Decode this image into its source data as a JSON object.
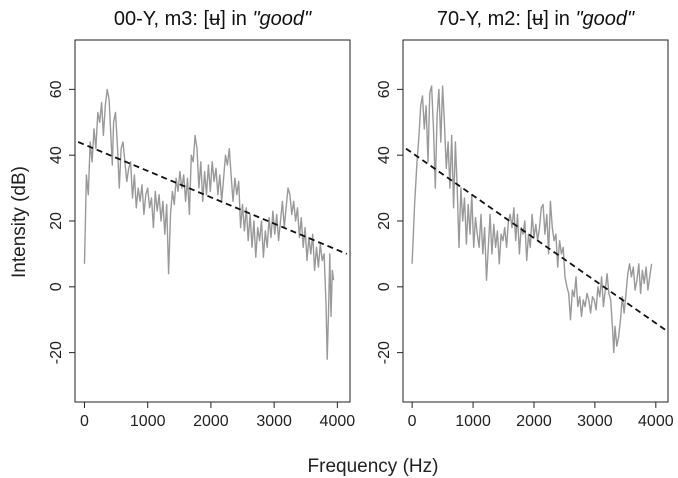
{
  "figure": {
    "xlabel": "Frequency (Hz)",
    "ylabel": "Intensity (dB)"
  },
  "chart_data": [
    {
      "type": "line",
      "title_parts": [
        {
          "text": "00-Y, m3: [",
          "italic": false
        },
        {
          "text": "ʉ",
          "italic": false
        },
        {
          "text": "] in ",
          "italic": false
        },
        {
          "text": "\"good\"",
          "italic": true
        }
      ],
      "xlabel": "Frequency (Hz)",
      "ylabel": "Intensity (dB)",
      "xlim": [
        -150,
        4200
      ],
      "ylim": [
        -35,
        75
      ],
      "xticks": [
        0,
        1000,
        2000,
        3000,
        4000
      ],
      "yticks": [
        -20,
        0,
        20,
        40,
        60
      ],
      "grid": false,
      "series": [
        {
          "style": "solid",
          "color": "#999999",
          "points": [
            [
              0,
              7
            ],
            [
              30,
              34
            ],
            [
              60,
              28
            ],
            [
              90,
              44
            ],
            [
              120,
              38
            ],
            [
              150,
              48
            ],
            [
              180,
              42
            ],
            [
              210,
              53
            ],
            [
              240,
              50
            ],
            [
              270,
              56
            ],
            [
              300,
              46
            ],
            [
              330,
              55
            ],
            [
              360,
              60
            ],
            [
              390,
              57
            ],
            [
              420,
              45
            ],
            [
              440,
              37
            ],
            [
              460,
              50
            ],
            [
              490,
              53
            ],
            [
              520,
              43
            ],
            [
              550,
              30
            ],
            [
              580,
              42
            ],
            [
              610,
              44
            ],
            [
              640,
              38
            ],
            [
              670,
              32
            ],
            [
              700,
              36
            ],
            [
              730,
              38
            ],
            [
              760,
              27
            ],
            [
              790,
              34
            ],
            [
              820,
              24
            ],
            [
              850,
              30
            ],
            [
              880,
              26
            ],
            [
              910,
              31
            ],
            [
              940,
              22
            ],
            [
              970,
              28
            ],
            [
              1000,
              30
            ],
            [
              1030,
              24
            ],
            [
              1060,
              27
            ],
            [
              1090,
              18
            ],
            [
              1120,
              29
            ],
            [
              1150,
              23
            ],
            [
              1180,
              28
            ],
            [
              1210,
              20
            ],
            [
              1240,
              26
            ],
            [
              1270,
              16
            ],
            [
              1300,
              25
            ],
            [
              1330,
              4
            ],
            [
              1360,
              22
            ],
            [
              1390,
              29
            ],
            [
              1420,
              25
            ],
            [
              1450,
              33
            ],
            [
              1480,
              29
            ],
            [
              1510,
              35
            ],
            [
              1540,
              30
            ],
            [
              1570,
              34
            ],
            [
              1600,
              26
            ],
            [
              1630,
              33
            ],
            [
              1660,
              22
            ],
            [
              1690,
              40
            ],
            [
              1720,
              38
            ],
            [
              1750,
              46
            ],
            [
              1780,
              42
            ],
            [
              1810,
              30
            ],
            [
              1840,
              38
            ],
            [
              1870,
              26
            ],
            [
              1900,
              35
            ],
            [
              1930,
              28
            ],
            [
              1960,
              37
            ],
            [
              1990,
              29
            ],
            [
              2020,
              38
            ],
            [
              2050,
              32
            ],
            [
              2080,
              36
            ],
            [
              2110,
              28
            ],
            [
              2140,
              34
            ],
            [
              2170,
              26
            ],
            [
              2200,
              33
            ],
            [
              2230,
              40
            ],
            [
              2260,
              37
            ],
            [
              2290,
              42
            ],
            [
              2320,
              34
            ],
            [
              2350,
              26
            ],
            [
              2380,
              33
            ],
            [
              2410,
              28
            ],
            [
              2440,
              32
            ],
            [
              2470,
              18
            ],
            [
              2500,
              25
            ],
            [
              2530,
              17
            ],
            [
              2560,
              24
            ],
            [
              2590,
              14
            ],
            [
              2620,
              22
            ],
            [
              2650,
              12
            ],
            [
              2680,
              20
            ],
            [
              2710,
              9
            ],
            [
              2740,
              18
            ],
            [
              2770,
              14
            ],
            [
              2800,
              20
            ],
            [
              2830,
              9
            ],
            [
              2860,
              17
            ],
            [
              2890,
              12
            ],
            [
              2920,
              21
            ],
            [
              2950,
              15
            ],
            [
              2980,
              23
            ],
            [
              3010,
              16
            ],
            [
              3040,
              22
            ],
            [
              3070,
              14
            ],
            [
              3100,
              20
            ],
            [
              3130,
              26
            ],
            [
              3160,
              18
            ],
            [
              3190,
              24
            ],
            [
              3220,
              30
            ],
            [
              3250,
              28
            ],
            [
              3280,
              22
            ],
            [
              3310,
              26
            ],
            [
              3340,
              20
            ],
            [
              3370,
              24
            ],
            [
              3400,
              15
            ],
            [
              3430,
              21
            ],
            [
              3460,
              12
            ],
            [
              3490,
              18
            ],
            [
              3520,
              8
            ],
            [
              3550,
              15
            ],
            [
              3580,
              10
            ],
            [
              3610,
              16
            ],
            [
              3640,
              5
            ],
            [
              3670,
              12
            ],
            [
              3700,
              6
            ],
            [
              3730,
              13
            ],
            [
              3760,
              8
            ],
            [
              3790,
              10
            ],
            [
              3820,
              -5
            ],
            [
              3840,
              -22
            ],
            [
              3860,
              -8
            ],
            [
              3880,
              10
            ],
            [
              3900,
              -9
            ],
            [
              3920,
              5
            ],
            [
              3940,
              2
            ]
          ]
        },
        {
          "style": "dashed",
          "color": "#111111",
          "points": [
            [
              -100,
              44
            ],
            [
              4150,
              10
            ]
          ]
        }
      ]
    },
    {
      "type": "line",
      "title_parts": [
        {
          "text": "70-Y, m2: [",
          "italic": false
        },
        {
          "text": "ʉ",
          "italic": false
        },
        {
          "text": "] in ",
          "italic": false
        },
        {
          "text": "\"good\"",
          "italic": true
        }
      ],
      "xlabel": "Frequency (Hz)",
      "ylabel": "Intensity (dB)",
      "xlim": [
        -150,
        4200
      ],
      "ylim": [
        -35,
        75
      ],
      "xticks": [
        0,
        1000,
        2000,
        3000,
        4000
      ],
      "yticks": [
        -20,
        0,
        20,
        40,
        60
      ],
      "grid": false,
      "series": [
        {
          "style": "solid",
          "color": "#999999",
          "points": [
            [
              0,
              7
            ],
            [
              40,
              25
            ],
            [
              80,
              38
            ],
            [
              110,
              45
            ],
            [
              140,
              55
            ],
            [
              170,
              58
            ],
            [
              200,
              48
            ],
            [
              230,
              55
            ],
            [
              260,
              38
            ],
            [
              290,
              59
            ],
            [
              320,
              61
            ],
            [
              350,
              48
            ],
            [
              380,
              30
            ],
            [
              410,
              52
            ],
            [
              440,
              60
            ],
            [
              470,
              44
            ],
            [
              500,
              61
            ],
            [
              530,
              50
            ],
            [
              560,
              36
            ],
            [
              590,
              44
            ],
            [
              620,
              30
            ],
            [
              650,
              46
            ],
            [
              680,
              24
            ],
            [
              710,
              44
            ],
            [
              740,
              30
            ],
            [
              770,
              12
            ],
            [
              800,
              30
            ],
            [
              830,
              20
            ],
            [
              860,
              27
            ],
            [
              890,
              13
            ],
            [
              920,
              25
            ],
            [
              950,
              16
            ],
            [
              980,
              28
            ],
            [
              1010,
              12
            ],
            [
              1040,
              21
            ],
            [
              1070,
              16
            ],
            [
              1100,
              12
            ],
            [
              1130,
              22
            ],
            [
              1160,
              10
            ],
            [
              1190,
              18
            ],
            [
              1220,
              2
            ],
            [
              1250,
              12
            ],
            [
              1280,
              22
            ],
            [
              1310,
              10
            ],
            [
              1340,
              19
            ],
            [
              1370,
              12
            ],
            [
              1400,
              17
            ],
            [
              1430,
              7
            ],
            [
              1460,
              16
            ],
            [
              1490,
              14
            ],
            [
              1520,
              18
            ],
            [
              1550,
              12
            ],
            [
              1580,
              20
            ],
            [
              1610,
              22
            ],
            [
              1640,
              18
            ],
            [
              1670,
              24
            ],
            [
              1700,
              14
            ],
            [
              1730,
              22
            ],
            [
              1760,
              10
            ],
            [
              1790,
              18
            ],
            [
              1820,
              16
            ],
            [
              1850,
              20
            ],
            [
              1880,
              8
            ],
            [
              1910,
              16
            ],
            [
              1940,
              12
            ],
            [
              1970,
              22
            ],
            [
              2000,
              15
            ],
            [
              2030,
              19
            ],
            [
              2060,
              14
            ],
            [
              2090,
              18
            ],
            [
              2120,
              24
            ],
            [
              2150,
              25
            ],
            [
              2180,
              16
            ],
            [
              2210,
              22
            ],
            [
              2240,
              10
            ],
            [
              2270,
              26
            ],
            [
              2300,
              18
            ],
            [
              2330,
              14
            ],
            [
              2360,
              16
            ],
            [
              2390,
              6
            ],
            [
              2420,
              14
            ],
            [
              2450,
              10
            ],
            [
              2480,
              12
            ],
            [
              2510,
              3
            ],
            [
              2540,
              0
            ],
            [
              2570,
              -2
            ],
            [
              2600,
              -10
            ],
            [
              2630,
              -1
            ],
            [
              2660,
              -3
            ],
            [
              2690,
              3
            ],
            [
              2720,
              -6
            ],
            [
              2750,
              -3
            ],
            [
              2780,
              -9
            ],
            [
              2810,
              -4
            ],
            [
              2840,
              -6
            ],
            [
              2870,
              -2
            ],
            [
              2900,
              -4
            ],
            [
              2930,
              -8
            ],
            [
              2960,
              -3
            ],
            [
              2990,
              -4
            ],
            [
              3020,
              -7
            ],
            [
              3050,
              0
            ],
            [
              3080,
              -3
            ],
            [
              3110,
              3
            ],
            [
              3140,
              -6
            ],
            [
              3170,
              -1
            ],
            [
              3200,
              4
            ],
            [
              3230,
              -2
            ],
            [
              3260,
              -4
            ],
            [
              3290,
              -13
            ],
            [
              3310,
              -20
            ],
            [
              3330,
              -12
            ],
            [
              3360,
              -18
            ],
            [
              3390,
              -15
            ],
            [
              3420,
              -10
            ],
            [
              3450,
              -3
            ],
            [
              3480,
              -8
            ],
            [
              3510,
              -2
            ],
            [
              3540,
              4
            ],
            [
              3570,
              7
            ],
            [
              3600,
              3
            ],
            [
              3630,
              6
            ],
            [
              3660,
              -1
            ],
            [
              3690,
              2
            ],
            [
              3720,
              7
            ],
            [
              3750,
              -2
            ],
            [
              3780,
              5
            ],
            [
              3810,
              1
            ],
            [
              3840,
              6
            ],
            [
              3870,
              -1
            ],
            [
              3900,
              3
            ],
            [
              3930,
              7
            ]
          ]
        },
        {
          "style": "dashed",
          "color": "#111111",
          "points": [
            [
              -100,
              42
            ],
            [
              4150,
              -13
            ]
          ]
        }
      ]
    }
  ]
}
